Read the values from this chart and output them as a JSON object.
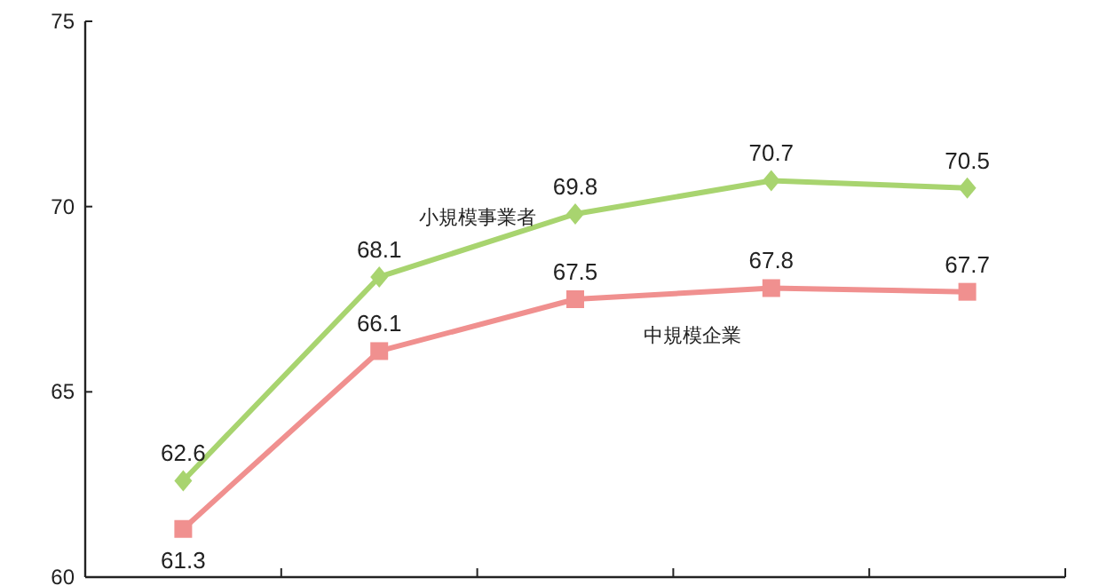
{
  "chart_data": {
    "type": "line",
    "categories": [
      null,
      null,
      null,
      null,
      null
    ],
    "series": [
      {
        "name": "小規模事業者",
        "color": "#a8d46f",
        "marker": "diamond",
        "values": [
          62.6,
          68.1,
          69.8,
          70.7,
          70.5
        ]
      },
      {
        "name": "中規模企業",
        "color": "#f0908f",
        "marker": "square",
        "values": [
          61.3,
          66.1,
          67.5,
          67.8,
          67.7
        ]
      }
    ],
    "ylim": [
      60,
      75
    ],
    "yticks": [
      60,
      65,
      70,
      75
    ],
    "data_labels": true,
    "grid": false,
    "legend": false
  }
}
